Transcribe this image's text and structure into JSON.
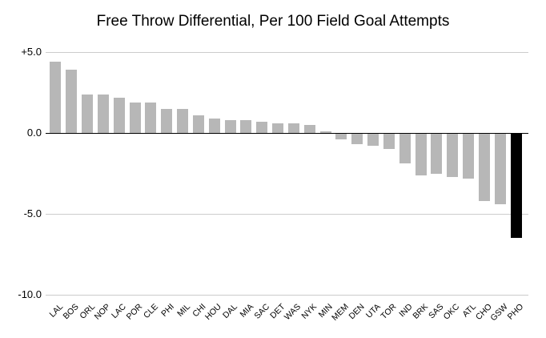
{
  "chart_data": {
    "type": "bar",
    "title": "Free Throw Differential, Per 100 Field Goal Attempts",
    "xlabel": "",
    "ylabel": "",
    "categories": [
      "LAL",
      "BOS",
      "ORL",
      "NOP",
      "LAC",
      "POR",
      "CLE",
      "PHI",
      "MIL",
      "CHI",
      "HOU",
      "DAL",
      "MIA",
      "SAC",
      "DET",
      "WAS",
      "NYK",
      "MIN",
      "MEM",
      "DEN",
      "UTA",
      "TOR",
      "IND",
      "BRK",
      "SAS",
      "OKC",
      "ATL",
      "CHO",
      "GSW",
      "PHO"
    ],
    "values": [
      4.4,
      3.9,
      2.4,
      2.4,
      2.2,
      1.9,
      1.9,
      1.5,
      1.5,
      1.1,
      0.9,
      0.8,
      0.8,
      0.7,
      0.6,
      0.6,
      0.5,
      0.1,
      -0.4,
      -0.7,
      -0.8,
      -1.0,
      -1.9,
      -2.6,
      -2.5,
      -2.7,
      -2.8,
      -4.2,
      -4.4,
      -6.5
    ],
    "highlight_category": "PHO",
    "yticks": [
      {
        "label": "+5.0",
        "value": 5
      },
      {
        "label": "0.0",
        "value": 0
      },
      {
        "label": "-5.0",
        "value": -5
      },
      {
        "label": "-10.0",
        "value": -10
      }
    ],
    "ylim": [
      -10.5,
      5.5
    ],
    "grid": true,
    "legend": "none",
    "colors": {
      "bar": "#b7b7b7",
      "highlight": "#000000",
      "gridline": "#cccccc",
      "zero_line": "#000000",
      "text": "#000000",
      "background": "#ffffff"
    }
  }
}
